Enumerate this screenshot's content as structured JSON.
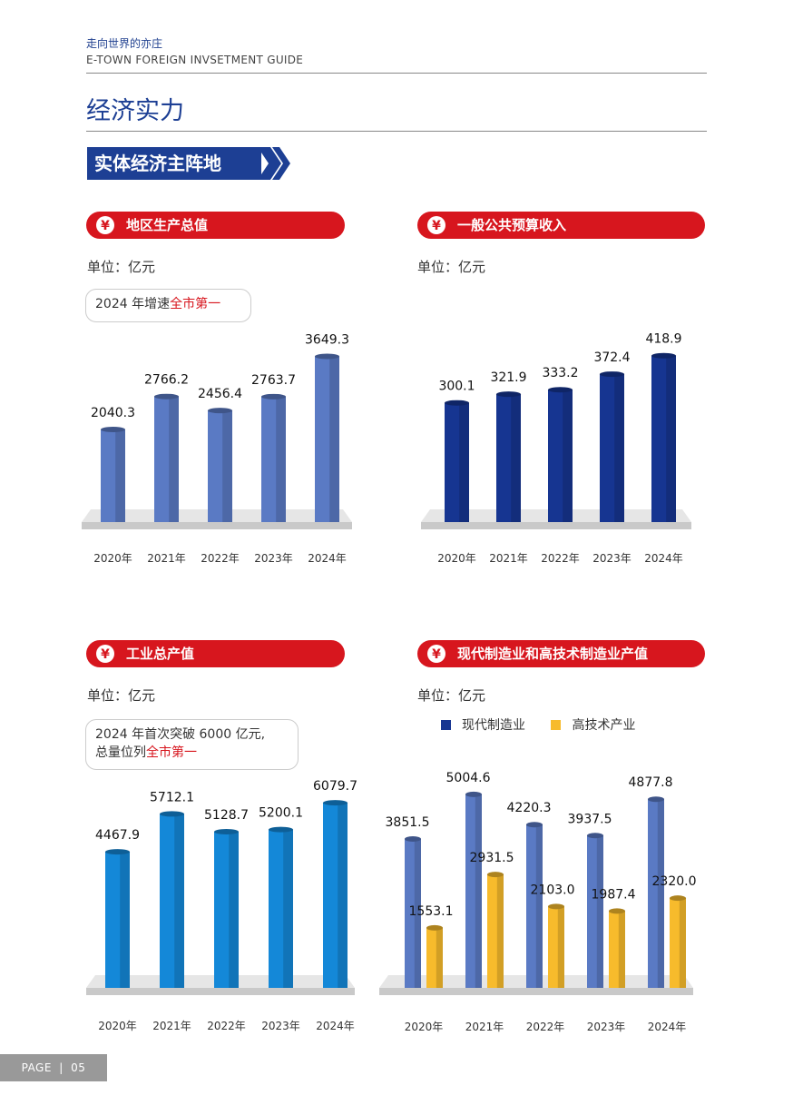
{
  "header": {
    "cn": "走向世界的亦庄",
    "en": "E-TOWN FOREIGN INVSETMENT GUIDE"
  },
  "title": "经济实力",
  "section_banner": "实体经济主阵地",
  "colors": {
    "navy": "#1d3f94",
    "red": "#d7161e",
    "bar_blue": "#5a7ac4",
    "bar_navy": "#163591",
    "bar_cyan": "#1488d8",
    "bar_orange": "#f7bb2c"
  },
  "icons": {
    "pill_icon": "yuan-hand-icon",
    "banner_chevron": "double-chevron-right-icon"
  },
  "panels": {
    "gdp": {
      "title": "地区生产总值",
      "unit": "单位：亿元",
      "callout_prefix": "2024 年增速",
      "callout_red": "全市第一"
    },
    "revenue": {
      "title": "一般公共预算收入",
      "unit": "单位：亿元"
    },
    "industry": {
      "title": "工业总产值",
      "unit": "单位：亿元",
      "callout_line1": "2024 年首次突破 6000 亿元,",
      "callout_line2_prefix": "总量位列",
      "callout_red": "全市第一"
    },
    "manufacturing": {
      "title": "现代制造业和高技术制造业产值",
      "unit": "单位：亿元",
      "legend": [
        "现代制造业",
        "高技术产业"
      ]
    }
  },
  "chart_data": [
    {
      "type": "bar",
      "categories": [
        "2020年",
        "2021年",
        "2022年",
        "2023年",
        "2024年"
      ],
      "values": [
        2040.3,
        2766.2,
        2456.4,
        2763.7,
        3649.3
      ],
      "labels": [
        "2040.3",
        "2766.2",
        "2456.4",
        "2763.7",
        "3649.3"
      ],
      "ylim": [
        0,
        4200
      ],
      "color": "#5a7ac4"
    },
    {
      "type": "bar",
      "categories": [
        "2020年",
        "2021年",
        "2022年",
        "2023年",
        "2024年"
      ],
      "values": [
        300.1,
        321.9,
        333.2,
        372.4,
        418.9
      ],
      "labels": [
        "300.1",
        "321.9",
        "333.2",
        "372.4",
        "418.9"
      ],
      "ylim": [
        0,
        480
      ],
      "color": "#163591"
    },
    {
      "type": "bar",
      "categories": [
        "2020年",
        "2021年",
        "2022年",
        "2023年",
        "2024年"
      ],
      "values": [
        4467.9,
        5712.1,
        5128.7,
        5200.1,
        6079.7
      ],
      "labels": [
        "4467.9",
        "5712.1",
        "5128.7",
        "5200.1",
        "6079.7"
      ],
      "ylim": [
        0,
        6500
      ],
      "color": "#1488d8"
    },
    {
      "type": "bar",
      "categories": [
        "2020年",
        "2021年",
        "2022年",
        "2023年",
        "2024年"
      ],
      "series": [
        {
          "name": "现代制造业",
          "values": [
            3851.5,
            5004.6,
            4220.3,
            3937.5,
            4877.8
          ],
          "labels": [
            "3851.5",
            "5004.6",
            "4220.3",
            "3937.5",
            "4877.8"
          ],
          "color": "#5a7ac4"
        },
        {
          "name": "高技术产业",
          "values": [
            1553.1,
            2931.5,
            2103.0,
            1987.4,
            2320.0
          ],
          "labels": [
            "1553.1",
            "2931.5",
            "2103.0",
            "1987.4",
            "2320.0"
          ],
          "color": "#f7bb2c"
        }
      ],
      "ylim": [
        0,
        5400
      ]
    }
  ],
  "footer": {
    "page_label": "PAGE",
    "page_number": "05"
  }
}
